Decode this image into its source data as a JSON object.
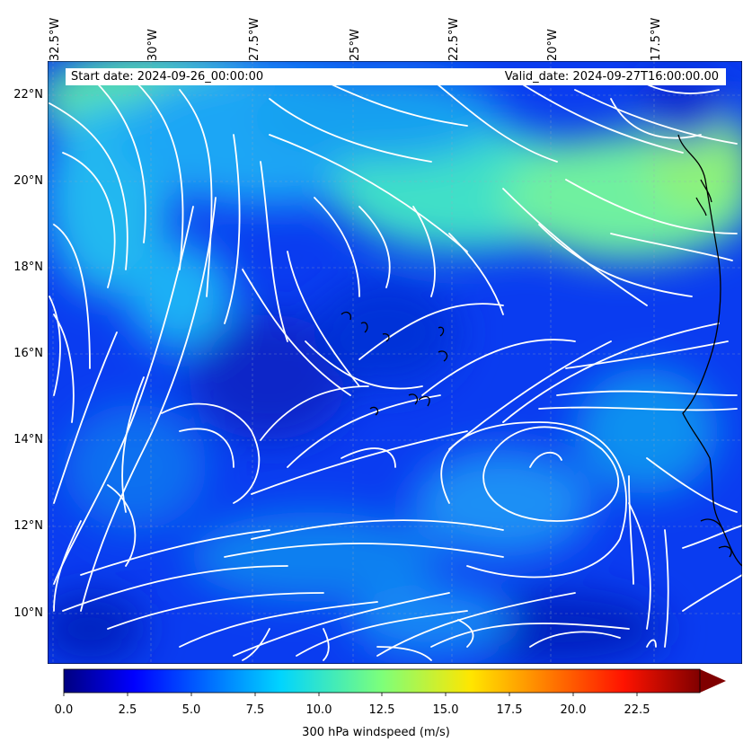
{
  "map": {
    "start_date": "Start date: 2024-09-26_00:00:00",
    "valid_date": "Valid_date: 2024-09-27T16:00:00.00",
    "longitude_labels": [
      "32.5°W",
      "30°W",
      "27.5°W",
      "25°W",
      "22.5°W",
      "20°W",
      "17.5°W"
    ],
    "latitude_labels": [
      "22°N",
      "20°N",
      "18°N",
      "16°N",
      "14°N",
      "12°N",
      "10°N"
    ],
    "field": "300 hPa windspeed",
    "streamline_color": "#ffffff",
    "coastline_color": "#000000"
  },
  "colorbar": {
    "title": "300 hPa windspeed (m/s)",
    "tick_labels": [
      "0.0",
      "2.5",
      "5.0",
      "7.5",
      "10.0",
      "12.5",
      "15.0",
      "17.5",
      "20.0",
      "22.5"
    ],
    "min": 0,
    "max": 25,
    "colormap": "jet",
    "extend": "max"
  }
}
